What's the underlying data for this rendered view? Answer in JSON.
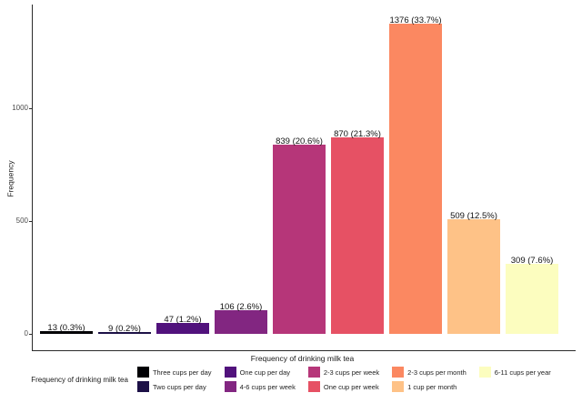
{
  "figure": {
    "background": "#ffffff",
    "axis_color": "#2b2b2b",
    "tick_label_color": "#4d4d4d"
  },
  "chart_data": {
    "type": "bar",
    "title": "",
    "xlabel": "Frequency of drinking milk tea",
    "ylabel": "Frequency",
    "categories": [
      "Three cups per day",
      "Two cups per day",
      "One cup per day",
      "4-6 cups per week",
      "2-3 cups per week",
      "One cup per week",
      "2-3 cups per month",
      "1 cup per month",
      "6-11 cups per year"
    ],
    "values": [
      13,
      9,
      47,
      106,
      839,
      870,
      1376,
      509,
      309
    ],
    "percentages": [
      "0.3%",
      "0.2%",
      "1.2%",
      "2.6%",
      "20.6%",
      "21.3%",
      "33.7%",
      "12.5%",
      "7.6%"
    ],
    "bar_labels": [
      "13 (0.3%)",
      "9 (0.2%)",
      "47 (1.2%)",
      "106 (2.6%)",
      "839 (20.6%)",
      "870 (21.3%)",
      "1376 (33.7%)",
      "509 (12.5%)",
      "309 (7.6%)"
    ],
    "colors": [
      "#000004",
      "#1D1147",
      "#51127C",
      "#822681",
      "#B63679",
      "#E65164",
      "#FB8861",
      "#FEC287",
      "#FCFDBF"
    ],
    "yticks": [
      0,
      500,
      1000
    ],
    "ylim": [
      0,
      1450
    ],
    "grid": false,
    "legend": {
      "title": "Frequency of drinking milk tea",
      "position": "bottom",
      "rows": 2
    }
  }
}
